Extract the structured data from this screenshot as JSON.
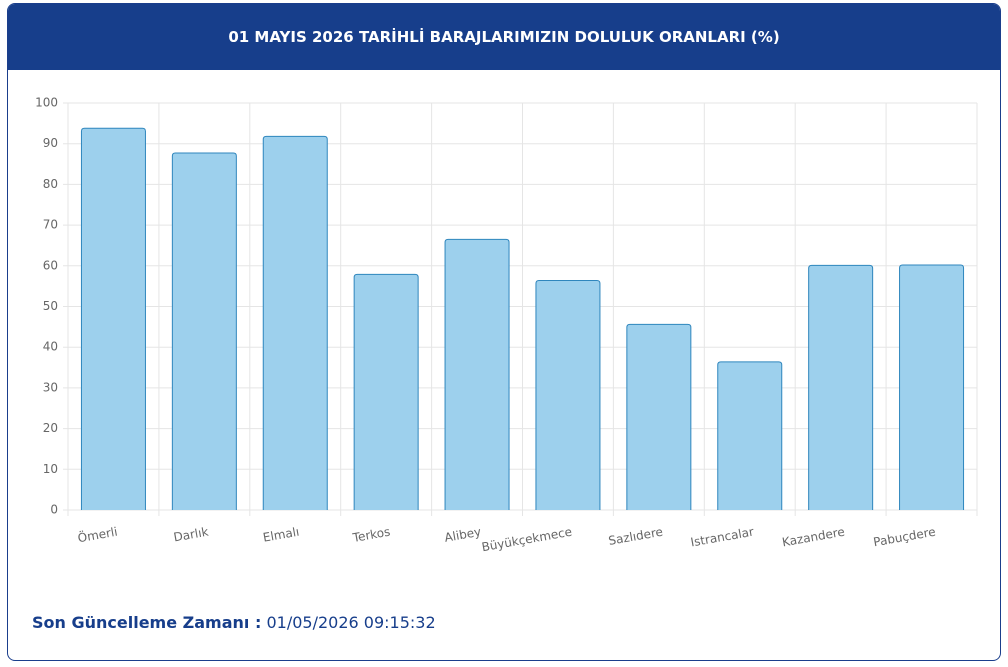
{
  "chart_data": {
    "type": "bar",
    "title": "01 MAYIS 2026 TARİHLİ BARAJLARIMIZIN DOLULUK ORANLARI (%)",
    "categories": [
      "Ömerli",
      "Darlık",
      "Elmalı",
      "Terkos",
      "Alibey",
      "Büyükçekmece",
      "Sazlıdere",
      "Istrancalar",
      "Kazandere",
      "Pabuçdere"
    ],
    "values": [
      93.8,
      87.7,
      91.8,
      57.9,
      66.5,
      56.4,
      45.6,
      36.4,
      60.1,
      60.2
    ],
    "color": "#9dd0ed",
    "edge_color": "#2f86bd",
    "ylim": [
      0,
      100
    ],
    "yticks": [
      0,
      10,
      20,
      30,
      40,
      50,
      60,
      70,
      80,
      90,
      100
    ],
    "grid": true
  },
  "footer": {
    "label": "Son Güncelleme Zamanı :",
    "value": "01/05/2026 09:15:32"
  }
}
